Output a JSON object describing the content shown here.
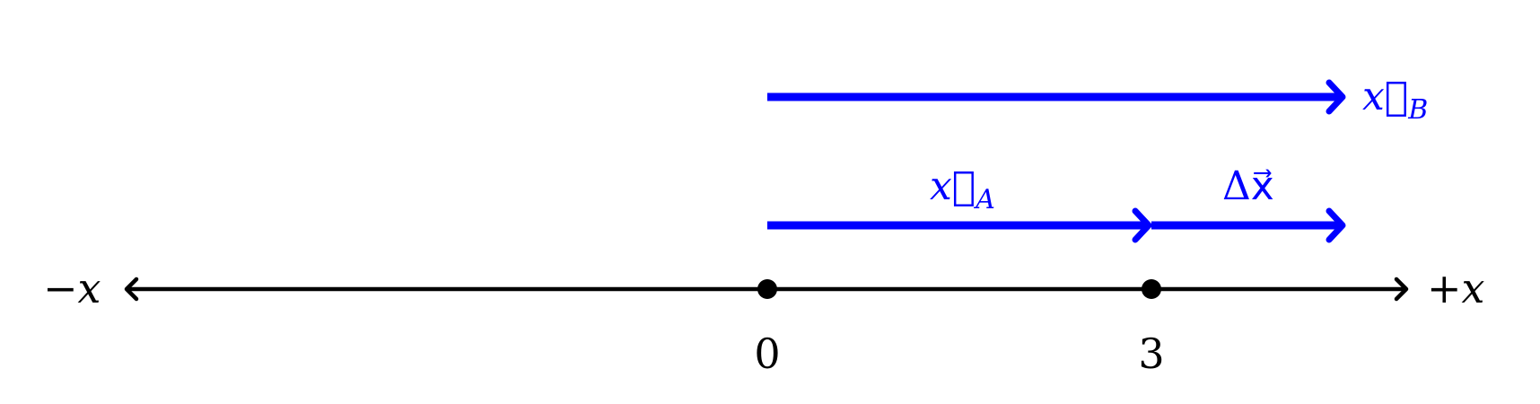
{
  "colors": {
    "axis": "#000000",
    "vector": "#0000ff"
  },
  "axis": {
    "neg_label": "−x",
    "pos_label": "+x"
  },
  "points": [
    {
      "value": 0,
      "label": "0"
    },
    {
      "value": 3,
      "label": "3"
    }
  ],
  "vectors": [
    {
      "id": "xB",
      "from": 0,
      "to": 4.5,
      "label_main": "x⃗",
      "label_sub": "B"
    },
    {
      "id": "xA",
      "from": 0,
      "to": 3,
      "label_main": "x⃗",
      "label_sub": "A"
    },
    {
      "id": "dx",
      "from": 3,
      "to": 4.5,
      "label_main": "Δx⃗",
      "label_sub": ""
    }
  ]
}
